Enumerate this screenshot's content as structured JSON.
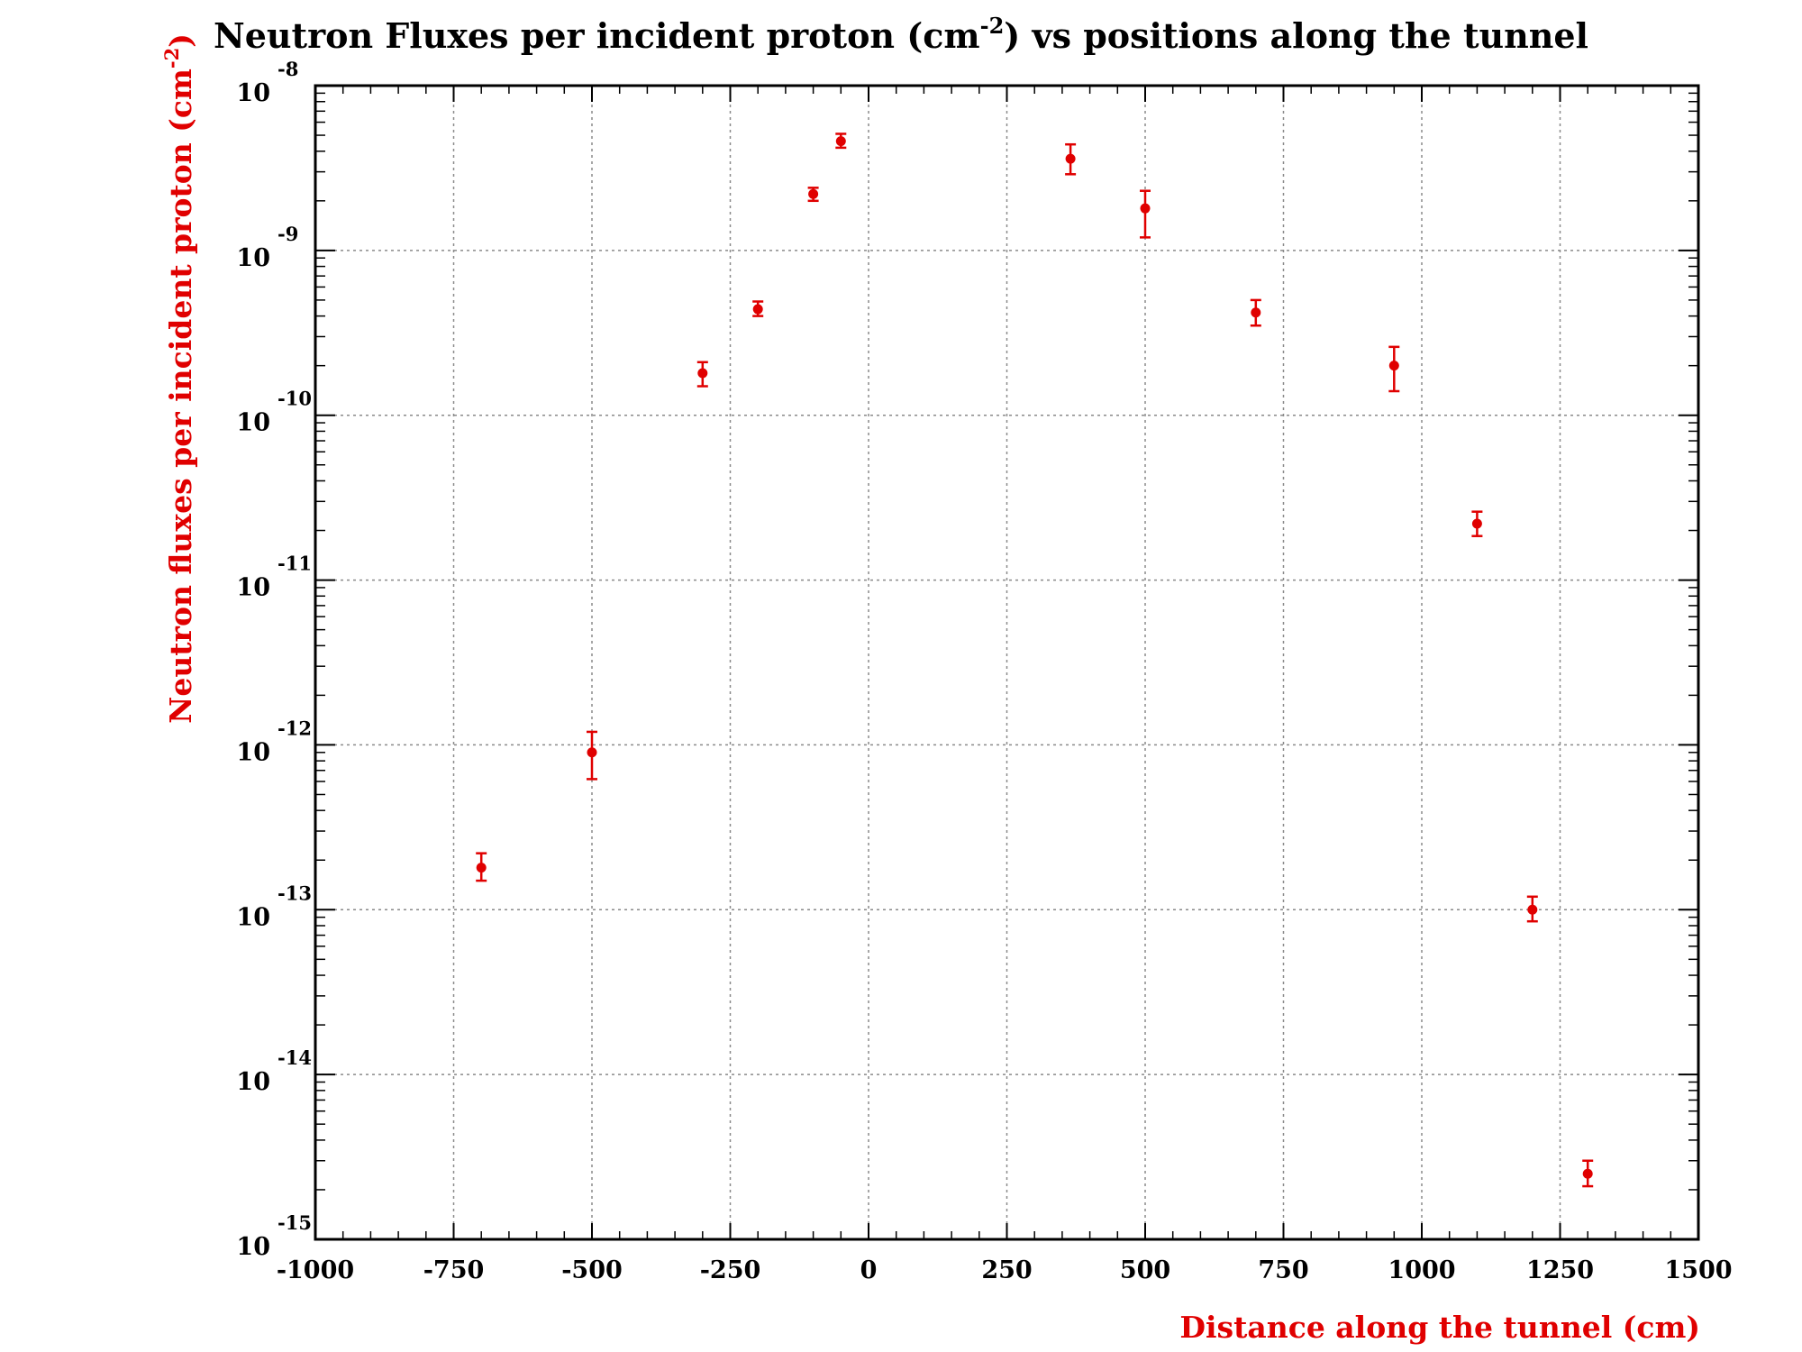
{
  "chart_data": {
    "type": "scatter",
    "title": {
      "prefix": "Neutron Fluxes per incident proton (cm",
      "sup": "-2",
      "suffix": ") vs positions along the tunnel"
    },
    "xlabel": "Distance along the tunnel (cm)",
    "ylabel": {
      "prefix": "Neutron fluxes per incident proton (cm",
      "sup": "-2",
      "suffix": ")"
    },
    "xlim": [
      -1000,
      1500
    ],
    "ylim": [
      1e-15,
      1e-08
    ],
    "yscale": "log",
    "grid": true,
    "x_ticks": [
      "-1000",
      "-750",
      "-500",
      "-250",
      "0",
      "250",
      "500",
      "750",
      "1000",
      "1250",
      "1500"
    ],
    "x_tick_values": [
      -1000,
      -750,
      -500,
      -250,
      0,
      250,
      500,
      750,
      1000,
      1250,
      1500
    ],
    "y_tick_base": "10",
    "y_tick_exponents": [
      "-8",
      "-9",
      "-10",
      "-11",
      "-12",
      "-13",
      "-14",
      "-15"
    ],
    "marker_color": "#e00000",
    "axis_label_color": "#e00000",
    "points": [
      {
        "x": -700,
        "y": 1.8e-13,
        "ylow": 1.5e-13,
        "yhigh": 2.2e-13
      },
      {
        "x": -500,
        "y": 9e-13,
        "ylow": 6.2e-13,
        "yhigh": 1.2e-12
      },
      {
        "x": -300,
        "y": 1.8e-10,
        "ylow": 1.5e-10,
        "yhigh": 2.1e-10
      },
      {
        "x": -200,
        "y": 4.4e-10,
        "ylow": 4e-10,
        "yhigh": 4.9e-10
      },
      {
        "x": -100,
        "y": 2.2e-09,
        "ylow": 2e-09,
        "yhigh": 2.4e-09
      },
      {
        "x": -50,
        "y": 4.6e-09,
        "ylow": 4.2e-09,
        "yhigh": 5.1e-09
      },
      {
        "x": 365,
        "y": 3.6e-09,
        "ylow": 2.9e-09,
        "yhigh": 4.4e-09
      },
      {
        "x": 500,
        "y": 1.8e-09,
        "ylow": 1.2e-09,
        "yhigh": 2.3e-09
      },
      {
        "x": 700,
        "y": 4.2e-10,
        "ylow": 3.5e-10,
        "yhigh": 5e-10
      },
      {
        "x": 950,
        "y": 2e-10,
        "ylow": 1.4e-10,
        "yhigh": 2.6e-10
      },
      {
        "x": 1100,
        "y": 2.2e-11,
        "ylow": 1.85e-11,
        "yhigh": 2.6e-11
      },
      {
        "x": 1200,
        "y": 1e-13,
        "ylow": 8.5e-14,
        "yhigh": 1.2e-13
      },
      {
        "x": 1300,
        "y": 2.5e-15,
        "ylow": 2.1e-15,
        "yhigh": 3e-15
      }
    ]
  }
}
